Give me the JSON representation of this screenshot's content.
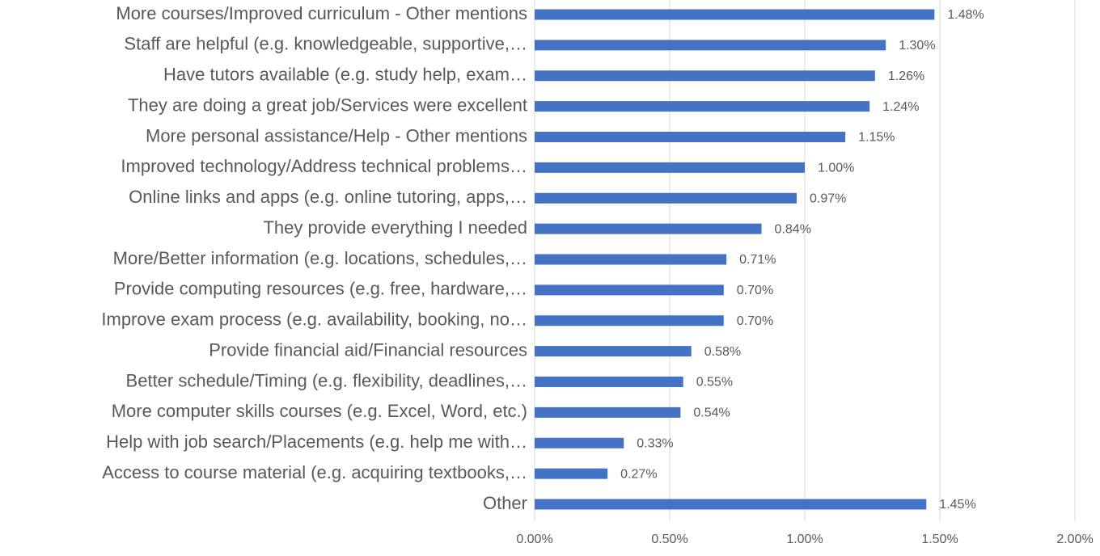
{
  "chart_data": {
    "type": "barh",
    "categories": [
      "More courses/Improved curriculum - Other mentions",
      "Staff are helpful (e.g. knowledgeable, supportive,…",
      "Have tutors available (e.g. study help, exam…",
      "They are doing a great job/Services were excellent",
      "More personal assistance/Help - Other mentions",
      "Improved technology/Address technical problems…",
      "Online links and apps (e.g. online tutoring, apps,…",
      "They provide everything I needed",
      "More/Better information (e.g. locations, schedules,…",
      "Provide computing resources (e.g. free, hardware,…",
      "Improve exam process (e.g. availability, booking, no…",
      "Provide financial aid/Financial resources",
      "Better schedule/Timing (e.g. flexibility, deadlines,…",
      "More computer skills courses (e.g. Excel, Word, etc.)",
      "Help with job search/Placements (e.g. help me with…",
      "Access to course material (e.g. acquiring textbooks,…",
      "Other"
    ],
    "values": [
      1.48,
      1.3,
      1.26,
      1.24,
      1.15,
      1.0,
      0.97,
      0.84,
      0.71,
      0.7,
      0.7,
      0.58,
      0.55,
      0.54,
      0.33,
      0.27,
      1.45
    ],
    "value_labels": [
      "1.48%",
      "1.30%",
      "1.26%",
      "1.24%",
      "1.15%",
      "1.00%",
      "0.97%",
      "0.84%",
      "0.71%",
      "0.70%",
      "0.70%",
      "0.58%",
      "0.55%",
      "0.54%",
      "0.33%",
      "0.27%",
      "1.45%"
    ],
    "color": "#4472c4",
    "xlim": [
      0,
      2
    ],
    "xticks": [
      {
        "value": 0,
        "label": "0.00%"
      },
      {
        "value": 0.5,
        "label": "0.50%"
      },
      {
        "value": 1,
        "label": "1.00%"
      },
      {
        "value": 1.5,
        "label": "1.50%"
      },
      {
        "value": 2,
        "label": "2.00%"
      }
    ],
    "grid": true
  }
}
